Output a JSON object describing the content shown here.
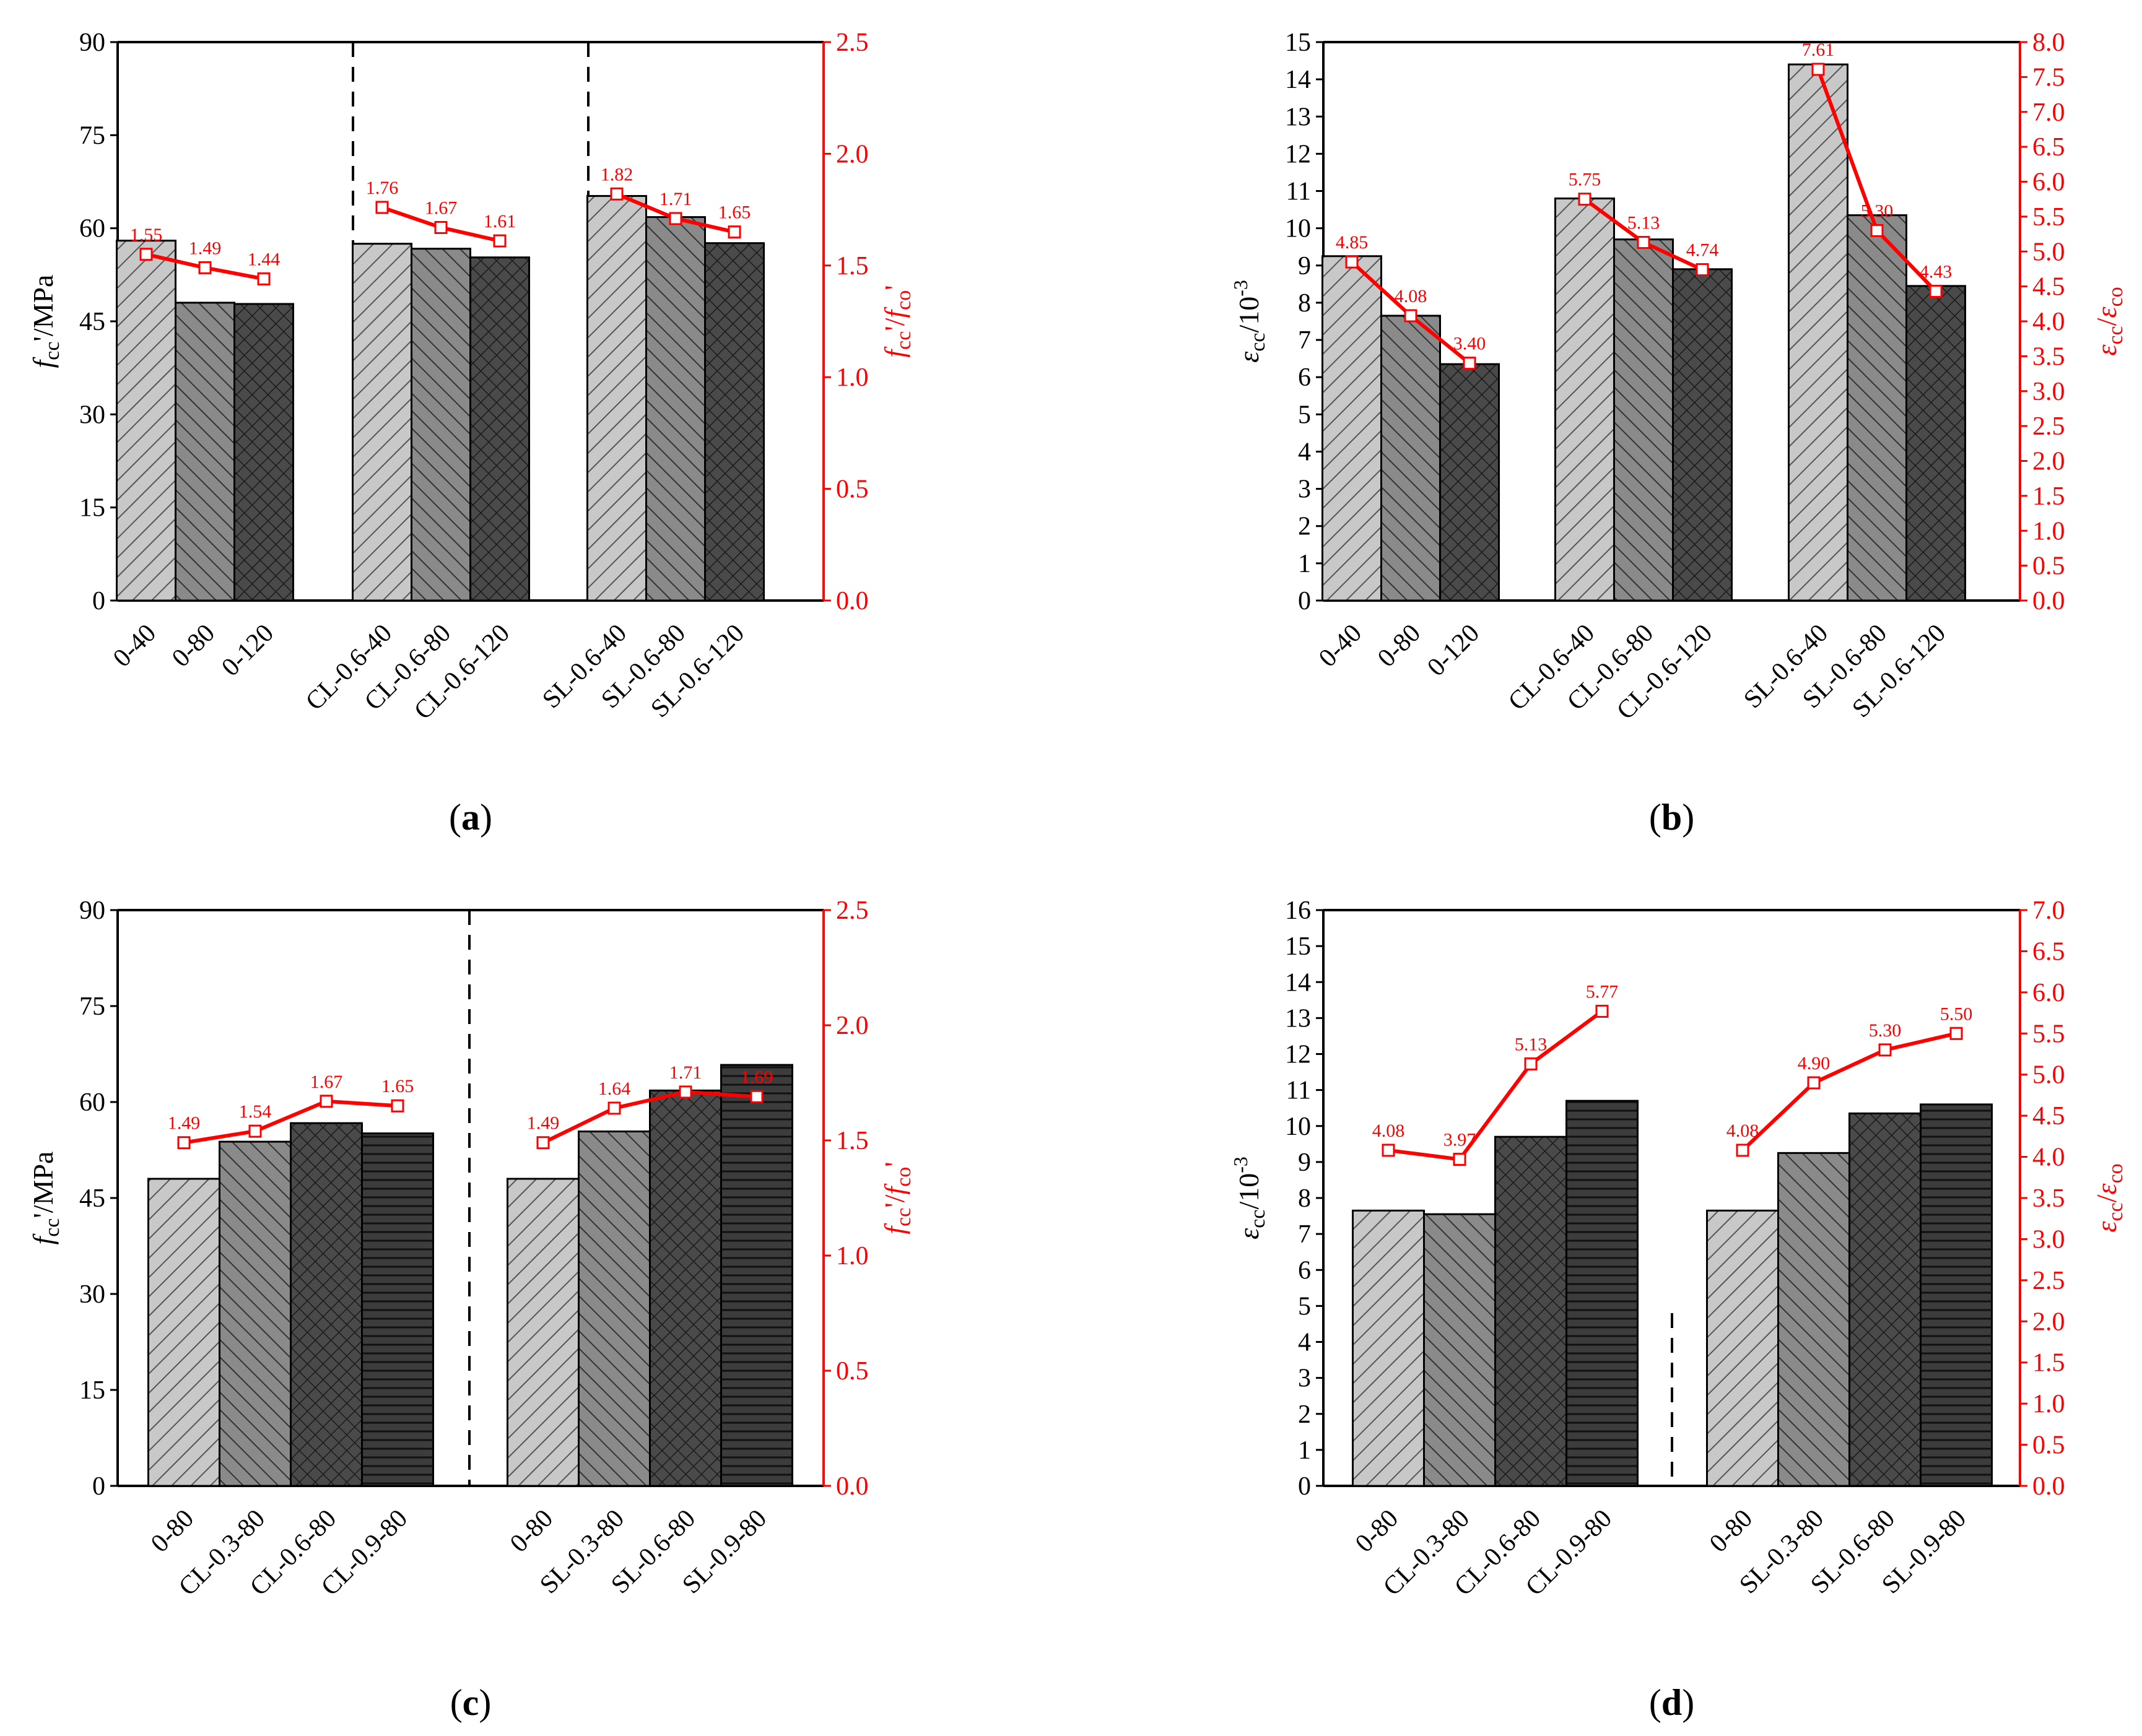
{
  "colors": {
    "ratio_line": "#ff0000",
    "bar_1": "#c8c8c8",
    "bar_2": "#8a8a8a",
    "bar_3": "#4a4a4a",
    "bar_4": "#3c3c3c",
    "axis": "#000000"
  },
  "chart_data": [
    {
      "id": "a",
      "type": "bar",
      "panel_label": "(a)",
      "title": "",
      "ylabel": "fcc'/MPa",
      "ylabel2": "fcc'/fco'",
      "ylim": [
        0,
        90
      ],
      "y2lim": [
        0,
        2.5
      ],
      "yticks": [
        "0",
        "15",
        "30",
        "45",
        "60",
        "75",
        "90"
      ],
      "y2ticks": [
        "0.0",
        "0.5",
        "1.0",
        "1.5",
        "2.0",
        "2.5"
      ],
      "divider": "long",
      "groups": [
        {
          "categories": [
            "0-40",
            "0-80",
            "0-120"
          ],
          "values": [
            58.0,
            48.0,
            47.8
          ],
          "ratios": [
            1.55,
            1.49,
            1.44
          ],
          "ratio_labels": [
            "1.55",
            "1.49",
            "1.44"
          ]
        },
        {
          "categories": [
            "CL-0.6-40",
            "CL-0.6-80",
            "CL-0.6-120"
          ],
          "values": [
            57.5,
            56.7,
            55.3
          ],
          "ratios": [
            1.76,
            1.67,
            1.61
          ],
          "ratio_labels": [
            "1.76",
            "1.67",
            "1.61"
          ]
        },
        {
          "categories": [
            "SL-0.6-40",
            "SL-0.6-80",
            "SL-0.6-120"
          ],
          "values": [
            65.2,
            61.8,
            57.6
          ],
          "ratios": [
            1.82,
            1.71,
            1.65
          ],
          "ratio_labels": [
            "1.82",
            "1.71",
            "1.65"
          ]
        }
      ]
    },
    {
      "id": "b",
      "type": "bar",
      "panel_label": "(b)",
      "title": "",
      "ylabel": "εcc/10-3",
      "ylabel2": "εcc/εco",
      "ylim": [
        0,
        15
      ],
      "y2lim": [
        0,
        8
      ],
      "yticks": [
        "0",
        "1",
        "2",
        "3",
        "4",
        "5",
        "6",
        "7",
        "8",
        "9",
        "10",
        "11",
        "12",
        "13",
        "14",
        "15"
      ],
      "y2ticks": [
        "0.0",
        "0.5",
        "1.0",
        "1.5",
        "2.0",
        "2.5",
        "3.0",
        "3.5",
        "4.0",
        "4.5",
        "5.0",
        "5.5",
        "6.0",
        "6.5",
        "7.0",
        "7.5",
        "8.0"
      ],
      "divider": "short",
      "groups": [
        {
          "categories": [
            "0-40",
            "0-80",
            "0-120"
          ],
          "values": [
            9.25,
            7.65,
            6.35
          ],
          "ratios": [
            4.85,
            4.08,
            3.4
          ],
          "ratio_labels": [
            "4.85",
            "4.08",
            "3.40"
          ]
        },
        {
          "categories": [
            "CL-0.6-40",
            "CL-0.6-80",
            "CL-0.6-120"
          ],
          "values": [
            10.8,
            9.7,
            8.9
          ],
          "ratios": [
            5.75,
            5.13,
            4.74
          ],
          "ratio_labels": [
            "5.75",
            "5.13",
            "4.74"
          ]
        },
        {
          "categories": [
            "SL-0.6-40",
            "SL-0.6-80",
            "SL-0.6-120"
          ],
          "values": [
            14.4,
            10.35,
            8.45
          ],
          "ratios": [
            7.61,
            5.3,
            4.43
          ],
          "ratio_labels": [
            "7.61",
            "5.30",
            "4.43"
          ]
        }
      ]
    },
    {
      "id": "c",
      "type": "bar",
      "panel_label": "(c)",
      "title": "",
      "ylabel": "fcc'/MPa",
      "ylabel2": "fcc'/fco'",
      "ylim": [
        0,
        90
      ],
      "y2lim": [
        0,
        2.5
      ],
      "yticks": [
        "0",
        "15",
        "30",
        "45",
        "60",
        "75",
        "90"
      ],
      "y2ticks": [
        "0.0",
        "0.5",
        "1.0",
        "1.5",
        "2.0",
        "2.5"
      ],
      "divider": "long",
      "groups": [
        {
          "categories": [
            "0-80",
            "CL-0.3-80",
            "CL-0.6-80",
            "CL-0.9-80"
          ],
          "values": [
            48.0,
            53.8,
            56.7,
            55.1
          ],
          "ratios": [
            1.49,
            1.54,
            1.67,
            1.65
          ],
          "ratio_labels": [
            "1.49",
            "1.54",
            "1.67",
            "1.65"
          ]
        },
        {
          "categories": [
            "0-80",
            "SL-0.3-80",
            "SL-0.6-80",
            "SL-0.9-80"
          ],
          "values": [
            48.0,
            55.4,
            61.8,
            65.8
          ],
          "ratios": [
            1.49,
            1.64,
            1.71,
            1.69
          ],
          "ratio_labels": [
            "1.49",
            "1.64",
            "1.71",
            "1.69"
          ]
        }
      ]
    },
    {
      "id": "d",
      "type": "bar",
      "panel_label": "(d)",
      "title": "",
      "ylabel": "εcc/10-3",
      "ylabel2": "εcc/εco",
      "ylim": [
        0,
        16
      ],
      "y2lim": [
        0,
        7
      ],
      "yticks": [
        "0",
        "1",
        "2",
        "3",
        "4",
        "5",
        "6",
        "7",
        "8",
        "9",
        "10",
        "11",
        "12",
        "13",
        "14",
        "15",
        "16"
      ],
      "y2ticks": [
        "0.0",
        "0.5",
        "1.0",
        "1.5",
        "2.0",
        "2.5",
        "3.0",
        "3.5",
        "4.0",
        "4.5",
        "5.0",
        "5.5",
        "6.0",
        "6.5",
        "7.0"
      ],
      "divider": "short",
      "groups": [
        {
          "categories": [
            "0-80",
            "CL-0.3-80",
            "CL-0.6-80",
            "CL-0.9-80"
          ],
          "values": [
            7.65,
            7.55,
            9.7,
            10.7
          ],
          "ratios": [
            4.08,
            3.97,
            5.13,
            5.77
          ],
          "ratio_labels": [
            "4.08",
            "3.97",
            "5.13",
            "5.77"
          ]
        },
        {
          "categories": [
            "0-80",
            "SL-0.3-80",
            "SL-0.6-80",
            "SL-0.9-80"
          ],
          "values": [
            7.65,
            9.25,
            10.35,
            10.6
          ],
          "ratios": [
            4.08,
            4.9,
            5.3,
            5.5
          ],
          "ratio_labels": [
            "4.08",
            "4.90",
            "5.30",
            "5.50"
          ]
        }
      ]
    }
  ]
}
